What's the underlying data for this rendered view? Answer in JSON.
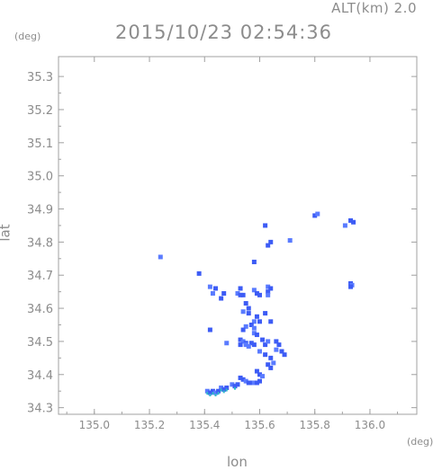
{
  "header": {
    "alt_label": "ALT(km)  2.0",
    "timestamp": "2015/10/23 02:54:36"
  },
  "axes": {
    "y_unit": "(deg)",
    "x_unit": "(deg)"
  },
  "colors": {
    "axis": "#a0a0a0",
    "text": "#8c8c8c",
    "echo_primary": "#3d5cf5",
    "echo_secondary": "#5a7bff",
    "echo_edge": "#2fb8c8"
  },
  "chart_data": {
    "type": "scatter",
    "title": "2015/10/23 02:54:36",
    "xlabel": "lon",
    "ylabel": "lat",
    "xlim": [
      134.87,
      136.17
    ],
    "ylim": [
      34.28,
      35.36
    ],
    "x_ticks": [
      "135.0",
      "135.2",
      "135.4",
      "135.6",
      "135.8",
      "136.0"
    ],
    "x_tick_values": [
      135.0,
      135.2,
      135.4,
      135.6,
      135.8,
      136.0
    ],
    "y_ticks": [
      "34.3",
      "34.4",
      "34.5",
      "34.6",
      "34.7",
      "34.8",
      "34.9",
      "35.0",
      "35.1",
      "35.2",
      "35.3"
    ],
    "y_tick_values": [
      34.3,
      34.4,
      34.5,
      34.6,
      34.7,
      34.8,
      34.9,
      35.0,
      35.1,
      35.2,
      35.3
    ],
    "grid": false,
    "series": [
      {
        "values": [
          [
            135.24,
            34.755
          ],
          [
            135.38,
            34.705
          ],
          [
            135.8,
            34.88
          ],
          [
            135.81,
            34.885
          ],
          [
            135.93,
            34.865
          ],
          [
            135.94,
            34.86
          ],
          [
            135.91,
            34.85
          ],
          [
            135.63,
            34.79
          ],
          [
            135.64,
            34.8
          ],
          [
            135.71,
            34.805
          ],
          [
            135.62,
            34.85
          ],
          [
            135.93,
            34.675
          ],
          [
            135.935,
            34.67
          ],
          [
            135.93,
            34.665
          ],
          [
            135.58,
            34.74
          ],
          [
            135.42,
            34.665
          ],
          [
            135.44,
            34.66
          ],
          [
            135.53,
            34.66
          ],
          [
            135.43,
            34.645
          ],
          [
            135.47,
            34.645
          ],
          [
            135.46,
            34.63
          ],
          [
            135.52,
            34.645
          ],
          [
            135.53,
            34.64
          ],
          [
            135.54,
            34.64
          ],
          [
            135.58,
            34.655
          ],
          [
            135.59,
            34.645
          ],
          [
            135.6,
            34.64
          ],
          [
            135.63,
            34.665
          ],
          [
            135.64,
            34.66
          ],
          [
            135.63,
            34.65
          ],
          [
            135.63,
            34.64
          ],
          [
            135.55,
            34.615
          ],
          [
            135.56,
            34.6
          ],
          [
            135.54,
            34.59
          ],
          [
            135.56,
            34.585
          ],
          [
            135.59,
            34.575
          ],
          [
            135.58,
            34.56
          ],
          [
            135.6,
            34.56
          ],
          [
            135.57,
            34.55
          ],
          [
            135.58,
            34.54
          ],
          [
            135.62,
            34.585
          ],
          [
            135.64,
            34.56
          ],
          [
            135.55,
            34.545
          ],
          [
            135.54,
            34.535
          ],
          [
            135.42,
            34.535
          ],
          [
            135.58,
            34.525
          ],
          [
            135.59,
            34.52
          ],
          [
            135.53,
            34.505
          ],
          [
            135.54,
            34.5
          ],
          [
            135.55,
            34.495
          ],
          [
            135.53,
            34.49
          ],
          [
            135.55,
            34.49
          ],
          [
            135.57,
            34.495
          ],
          [
            135.58,
            34.49
          ],
          [
            135.56,
            34.485
          ],
          [
            135.61,
            34.505
          ],
          [
            135.62,
            34.49
          ],
          [
            135.63,
            34.5
          ],
          [
            135.66,
            34.5
          ],
          [
            135.67,
            34.49
          ],
          [
            135.66,
            34.475
          ],
          [
            135.68,
            34.47
          ],
          [
            135.69,
            34.46
          ],
          [
            135.6,
            34.47
          ],
          [
            135.62,
            34.46
          ],
          [
            135.64,
            34.45
          ],
          [
            135.48,
            34.495
          ],
          [
            135.63,
            34.43
          ],
          [
            135.64,
            34.42
          ],
          [
            135.65,
            34.435
          ],
          [
            135.59,
            34.41
          ],
          [
            135.6,
            34.4
          ],
          [
            135.61,
            34.395
          ],
          [
            135.53,
            34.39
          ],
          [
            135.54,
            34.385
          ],
          [
            135.55,
            34.38
          ],
          [
            135.56,
            34.375
          ],
          [
            135.57,
            34.375
          ],
          [
            135.58,
            34.375
          ],
          [
            135.59,
            34.375
          ],
          [
            135.6,
            34.38
          ],
          [
            135.5,
            34.37
          ],
          [
            135.51,
            34.365
          ],
          [
            135.52,
            34.37
          ],
          [
            135.46,
            34.36
          ],
          [
            135.47,
            34.355
          ],
          [
            135.48,
            34.36
          ],
          [
            135.41,
            34.35
          ],
          [
            135.42,
            34.345
          ],
          [
            135.43,
            34.35
          ],
          [
            135.44,
            34.345
          ],
          [
            135.45,
            34.35
          ]
        ]
      }
    ]
  }
}
